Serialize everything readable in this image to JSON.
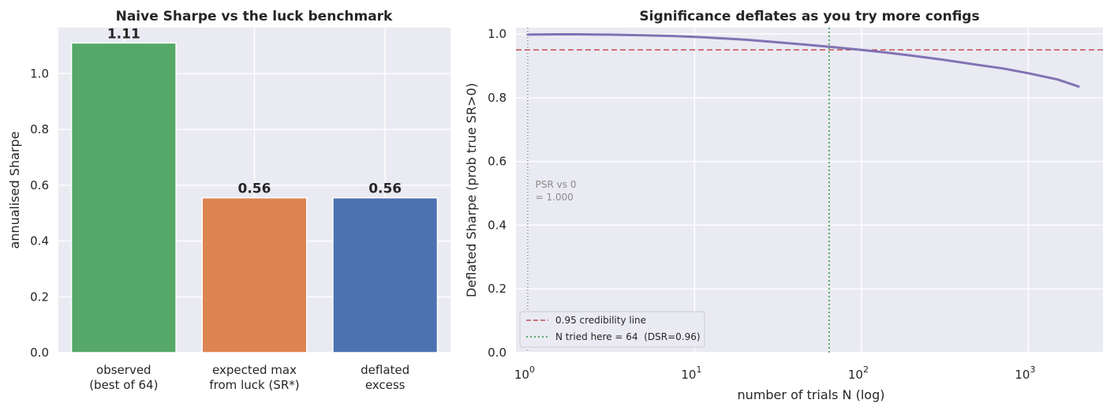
{
  "chart_data": [
    {
      "type": "bar",
      "title": "Naive Sharpe vs the luck benchmark",
      "xlabel": "",
      "ylabel": "annualised Sharpe",
      "categories": [
        "observed\n(best of 64)",
        "expected max\nfrom luck (SR*)",
        "deflated\nexcess"
      ],
      "values": [
        1.11,
        0.555,
        0.555
      ],
      "value_labels": [
        "1.11",
        "0.56",
        "0.56"
      ],
      "colors": [
        "#55a868",
        "#dd8452",
        "#4c72b0"
      ],
      "ylim": [
        0,
        1.165
      ],
      "yticks": [
        0.0,
        0.2,
        0.4,
        0.6,
        0.8,
        1.0
      ],
      "ytick_labels": [
        "0.0",
        "0.2",
        "0.4",
        "0.6",
        "0.8",
        "1.0"
      ],
      "grid": true
    },
    {
      "type": "line",
      "title": "Significance deflates as you try more configs",
      "xlabel": "number of trials N (log)",
      "ylabel": "Deflated Sharpe (prob true SR>0)",
      "xscale": "log",
      "xlim": [
        0.85,
        2800
      ],
      "ylim": [
        0,
        1.02
      ],
      "xticks": [
        1,
        10,
        100,
        1000
      ],
      "xtick_base": "10",
      "xtick_exponents": [
        "0",
        "1",
        "2",
        "3"
      ],
      "yticks": [
        0.0,
        0.2,
        0.4,
        0.6,
        0.8,
        1.0
      ],
      "ytick_labels": [
        "0.0",
        "0.2",
        "0.4",
        "0.6",
        "0.8",
        "1.0"
      ],
      "series": [
        {
          "color": "#8172b3",
          "x": [
            1,
            1.5,
            2,
            3,
            5,
            7,
            10,
            15,
            20,
            30,
            50,
            64,
            80,
            100,
            150,
            200,
            300,
            500,
            700,
            1000,
            1500,
            2000
          ],
          "y": [
            0.998,
            0.999,
            0.999,
            0.998,
            0.996,
            0.994,
            0.991,
            0.986,
            0.982,
            0.975,
            0.965,
            0.96,
            0.955,
            0.95,
            0.94,
            0.932,
            0.92,
            0.903,
            0.892,
            0.877,
            0.857,
            0.835
          ]
        }
      ],
      "hlines": [
        {
          "y": 0.95,
          "color": "#c44e52",
          "style": "dashed",
          "legend": "0.95 credibility line"
        }
      ],
      "vlines": [
        {
          "x": 64,
          "color": "#55a868",
          "style": "dotted",
          "legend": "N tried here = 64  (DSR=0.96)"
        },
        {
          "x": 1,
          "color": "#777777",
          "style": "dotted"
        }
      ],
      "annotation": {
        "line1": "PSR vs 0",
        "line2": "= 1.000",
        "x": 1.1,
        "y": 0.5
      },
      "legend_position": "lower-left",
      "grid": true
    }
  ]
}
